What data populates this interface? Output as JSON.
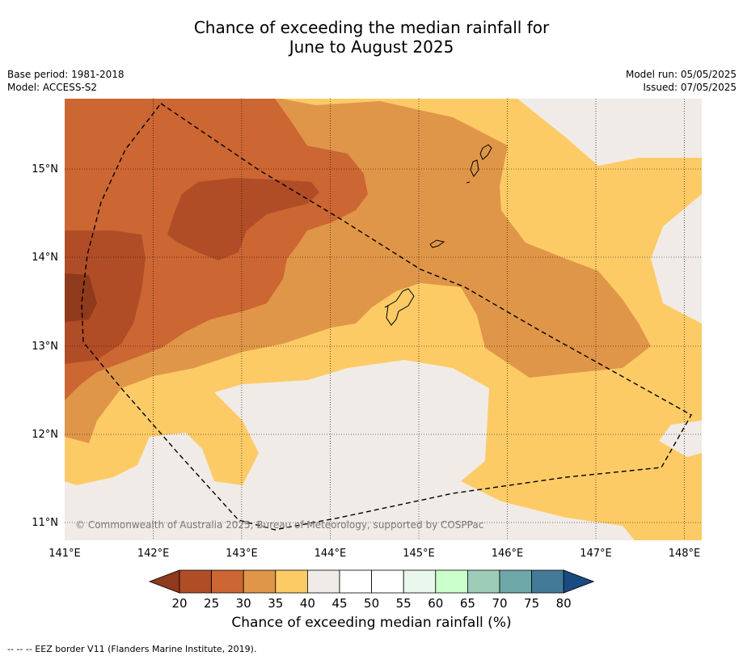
{
  "title": {
    "line1": "Chance of exceeding the median rainfall for",
    "line2": "June to August 2025"
  },
  "meta_left": {
    "base_period": "Base period: 1981-2018",
    "model": "Model: ACCESS-S2"
  },
  "meta_right": {
    "model_run": "Model run: 05/05/2025",
    "issued": "Issued: 07/05/2025"
  },
  "map": {
    "lat_ticks": [
      "15°N",
      "14°N",
      "13°N",
      "12°N",
      "11°N"
    ],
    "lon_ticks": [
      "141°E",
      "142°E",
      "143°E",
      "144°E",
      "145°E",
      "146°E",
      "147°E",
      "148°E"
    ],
    "copyright": "© Commonwealth of Australia 2025, Bureau of Meteorology, supported by COSPPac"
  },
  "colorbar": {
    "ticks": [
      "20",
      "25",
      "30",
      "35",
      "40",
      "45",
      "50",
      "55",
      "60",
      "65",
      "70",
      "75",
      "80"
    ],
    "colors": [
      "#8f3a1c",
      "#b04d26",
      "#cc6633",
      "#e09648",
      "#fdcb66",
      "#f0ebe6",
      "#ffffff",
      "#ffffff",
      "#e9f7ec",
      "#cbffcb",
      "#9ecdb7",
      "#6ea7a8",
      "#427a97",
      "#1a4a82"
    ],
    "label": "Chance of exceeding median rainfall (%)"
  },
  "footer": "--  --  -- EEZ border V11 (Flanders Marine Institute, 2019)."
}
